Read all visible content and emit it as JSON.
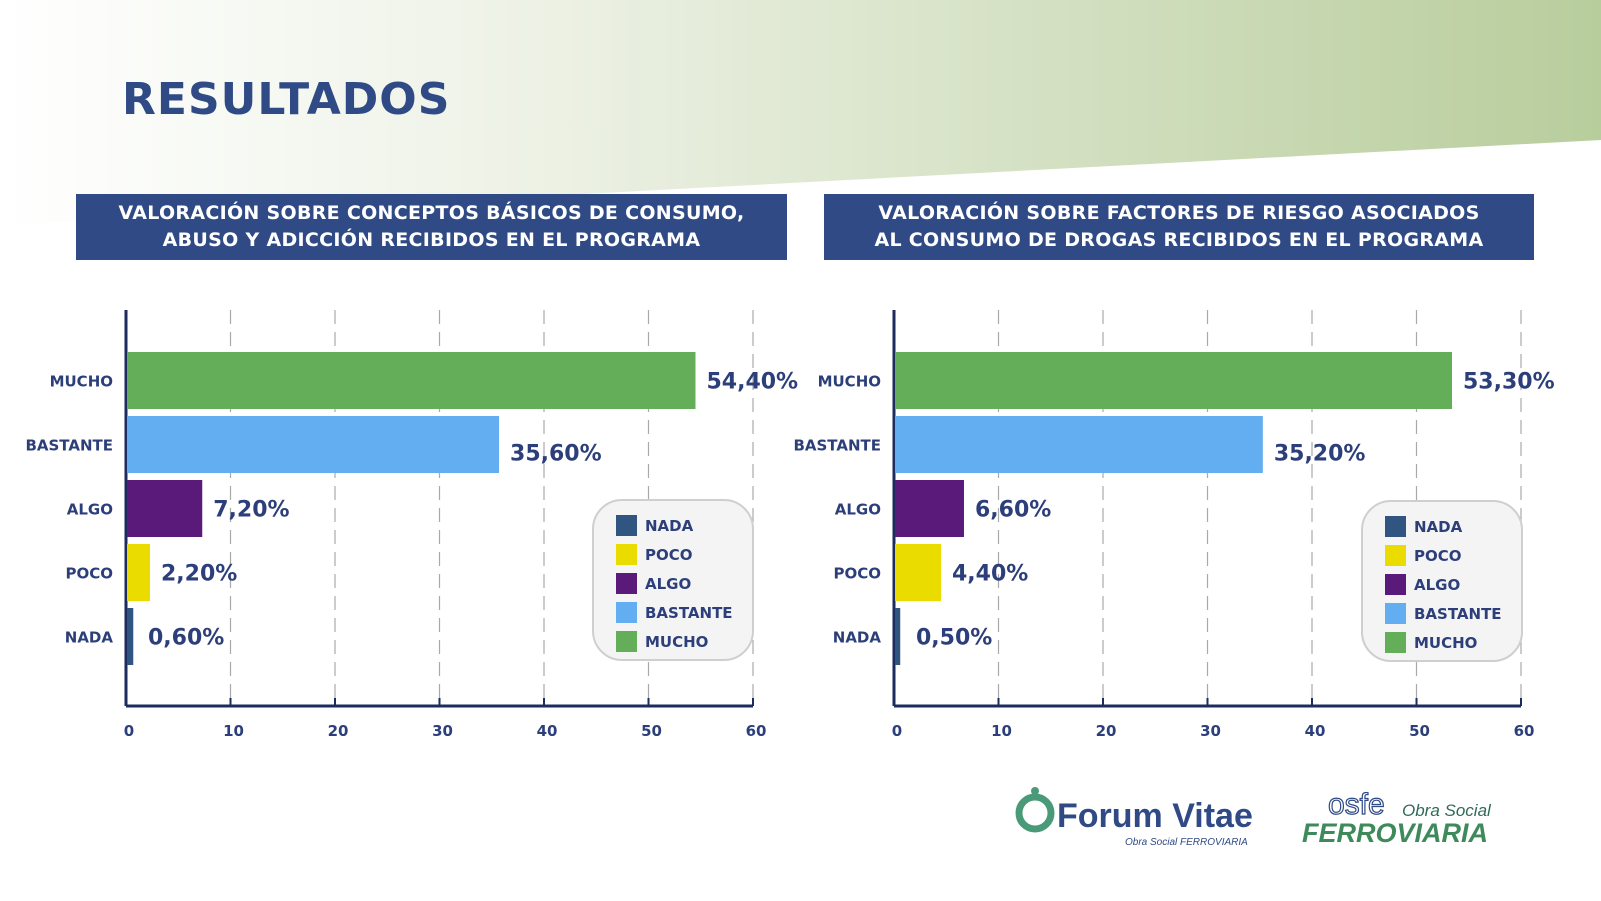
{
  "page_title": "RESULTADOS",
  "colors": {
    "NADA": "#2f5580",
    "POCO": "#ebdc00",
    "ALGO": "#5a1a7a",
    "BASTANTE": "#63aef0",
    "MUCHO": "#64ad59",
    "axis": "#1d2b5e",
    "text": "#2d3f7a"
  },
  "legend": [
    "NADA",
    "POCO",
    "ALGO",
    "BASTANTE",
    "MUCHO"
  ],
  "chart_data": [
    {
      "type": "bar",
      "orientation": "horizontal",
      "title_line1": "VALORACIÓN SOBRE CONCEPTOS BÁSICOS DE CONSUMO,",
      "title_line2": "ABUSO Y ADICCIÓN RECIBIDOS EN EL PROGRAMA",
      "categories": [
        "MUCHO",
        "BASTANTE",
        "ALGO",
        "POCO",
        "NADA"
      ],
      "values": [
        54.4,
        35.6,
        7.2,
        2.2,
        0.6
      ],
      "data_labels": [
        "54,40%",
        "35,60%",
        "7,20%",
        "2,20%",
        "0,60%"
      ],
      "xlim": [
        0,
        60
      ],
      "xticks": [
        "0",
        "10",
        "20",
        "30",
        "40",
        "50",
        "60"
      ],
      "grid": "vertical dashed",
      "legend_position": "bottom-right"
    },
    {
      "type": "bar",
      "orientation": "horizontal",
      "title_line1": "VALORACIÓN SOBRE FACTORES DE RIESGO ASOCIADOS",
      "title_line2": "AL CONSUMO DE DROGAS RECIBIDOS EN EL PROGRAMA",
      "categories": [
        "MUCHO",
        "BASTANTE",
        "ALGO",
        "POCO",
        "NADA"
      ],
      "values": [
        53.3,
        35.2,
        6.6,
        4.4,
        0.5
      ],
      "data_labels": [
        "53,30%",
        "35,20%",
        "6,60%",
        "4,40%",
        "0,50%"
      ],
      "xlim": [
        0,
        60
      ],
      "xticks": [
        "0",
        "10",
        "20",
        "30",
        "40",
        "50",
        "60"
      ],
      "grid": "vertical dashed",
      "legend_position": "bottom-right"
    }
  ],
  "logos": {
    "forum_vitae": "Forum Vitae",
    "forum_vitae_sub": "Obra Social FERROVIARIA",
    "osfe": "osfe",
    "osfe_obra": "Obra Social",
    "osfe_name": "FERROVIARIA"
  }
}
